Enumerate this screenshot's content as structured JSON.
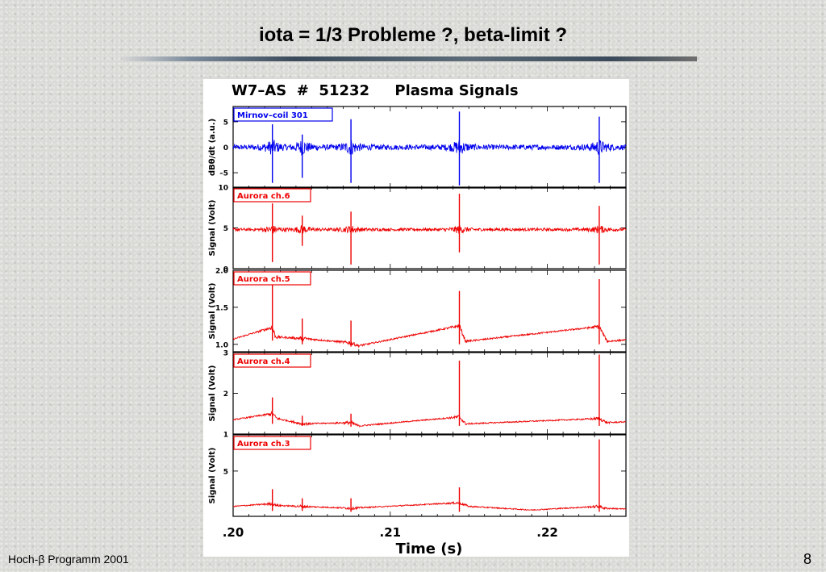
{
  "slide": {
    "title": "iota = 1/3 Probleme ?, beta-limit ?",
    "footer_left": "Hoch-β Programm 2001",
    "page_number": "8"
  },
  "chart_data": {
    "type": "line",
    "title": "W7–AS  #  51232     Plasma Signals",
    "xlabel": "Time (s)",
    "xlim": [
      0.2,
      0.225
    ],
    "x_ticks": [
      {
        "value": 0.2,
        "label": ".20"
      },
      {
        "value": 0.21,
        "label": ".21"
      },
      {
        "value": 0.22,
        "label": ".22"
      }
    ],
    "spikes": [
      0.2025,
      0.2044,
      0.2075,
      0.2144,
      0.2233
    ],
    "panels": [
      {
        "legend": "Mirnov–coil 301",
        "ylabel": "dBθ/dt (a.u.)",
        "color": "#0000ee",
        "ylim": [
          -8,
          8
        ],
        "yticks": [
          {
            "value": 5,
            "label": "5"
          },
          {
            "value": 0,
            "label": "0"
          },
          {
            "value": -5,
            "label": "–5"
          }
        ],
        "baseline": [
          [
            0.2,
            0
          ],
          [
            0.225,
            0
          ]
        ],
        "noise": 1.0,
        "spike_heights": [
          4.5,
          2.5,
          5.5,
          7.0,
          6.0
        ],
        "spike_depths": [
          -7.0,
          -6.0,
          -7.0,
          -7.5,
          -7.0
        ]
      },
      {
        "legend": "Aurora ch.6",
        "ylabel": "Signal (Volt)",
        "color": "#ee0000",
        "ylim": [
          0,
          10
        ],
        "yticks": [
          {
            "value": 10,
            "label": "10"
          },
          {
            "value": 5,
            "label": "5"
          },
          {
            "value": 0,
            "label": "0"
          }
        ],
        "baseline": [
          [
            0.2,
            4.8
          ],
          [
            0.225,
            4.8
          ]
        ],
        "noise": 0.35,
        "spike_heights": [
          8.0,
          6.5,
          7.0,
          9.2,
          7.7
        ],
        "spike_depths": [
          0.8,
          2.8,
          0.5,
          2.0,
          0.5
        ]
      },
      {
        "legend": "Aurora ch.5",
        "ylabel": "Signal (Volt)",
        "color": "#ee0000",
        "ylim": [
          0.9,
          2.0
        ],
        "yticks": [
          {
            "value": 2.0,
            "label": "2.0"
          },
          {
            "value": 1.5,
            "label": "1.5"
          },
          {
            "value": 1.0,
            "label": "1.0"
          }
        ],
        "baseline": [
          [
            0.2,
            1.07
          ],
          [
            0.2025,
            1.23
          ],
          [
            0.2027,
            1.1
          ],
          [
            0.2044,
            1.08
          ],
          [
            0.2075,
            1.02
          ],
          [
            0.208,
            0.98
          ],
          [
            0.2144,
            1.25
          ],
          [
            0.2148,
            1.04
          ],
          [
            0.2233,
            1.24
          ],
          [
            0.2238,
            1.04
          ],
          [
            0.225,
            1.06
          ]
        ],
        "noise": 0.02,
        "spike_heights": [
          1.8,
          1.35,
          1.32,
          1.72,
          1.88
        ],
        "spike_depths": [
          1.05,
          1.0,
          0.97,
          1.0,
          1.0
        ]
      },
      {
        "legend": "Aurora ch.4",
        "ylabel": "Signal (Volt)",
        "color": "#ee0000",
        "ylim": [
          1,
          3
        ],
        "yticks": [
          {
            "value": 3,
            "label": "3"
          },
          {
            "value": 2,
            "label": "2"
          },
          {
            "value": 1,
            "label": "1"
          }
        ],
        "baseline": [
          [
            0.2,
            1.35
          ],
          [
            0.2025,
            1.5
          ],
          [
            0.2028,
            1.38
          ],
          [
            0.2044,
            1.25
          ],
          [
            0.2075,
            1.28
          ],
          [
            0.208,
            1.2
          ],
          [
            0.2144,
            1.42
          ],
          [
            0.2148,
            1.25
          ],
          [
            0.2233,
            1.38
          ],
          [
            0.2238,
            1.28
          ],
          [
            0.225,
            1.3
          ]
        ],
        "noise": 0.03,
        "spike_heights": [
          1.9,
          1.45,
          1.5,
          2.8,
          2.95
        ],
        "spike_depths": [
          1.25,
          1.2,
          1.18,
          1.2,
          1.2
        ]
      },
      {
        "legend": "Aurora ch.3",
        "ylabel": "Signal (Volt)",
        "color": "#ee0000",
        "ylim": [
          0,
          9
        ],
        "yticks": [
          {
            "value": 5,
            "label": "5"
          }
        ],
        "baseline": [
          [
            0.2,
            1.1
          ],
          [
            0.2025,
            1.4
          ],
          [
            0.2028,
            1.2
          ],
          [
            0.2075,
            0.9
          ],
          [
            0.2144,
            1.5
          ],
          [
            0.215,
            1.1
          ],
          [
            0.219,
            0.7
          ],
          [
            0.2233,
            1.1
          ],
          [
            0.2236,
            0.9
          ],
          [
            0.225,
            0.8
          ]
        ],
        "noise": 0.12,
        "spike_heights": [
          3.0,
          2.0,
          2.0,
          3.2,
          8.5
        ],
        "spike_depths": [
          0.6,
          0.6,
          0.5,
          0.5,
          0.5
        ]
      }
    ]
  }
}
